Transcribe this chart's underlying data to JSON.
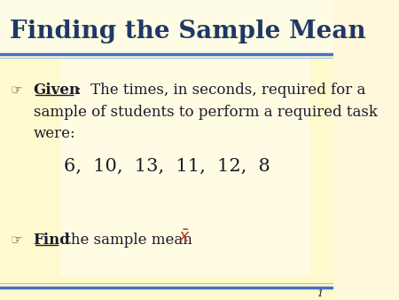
{
  "title": "Finding the Sample Mean",
  "title_color": "#1F3864",
  "title_fontsize": 20,
  "header_line_color": "#4472C4",
  "header_line_color2": "#A8C4E0",
  "given_label": "Given",
  "given_colon_text": ":  The times, in seconds, required for a",
  "given_line2": "sample of students to perform a required task",
  "given_line3": "were:",
  "data_values": "6,  10,  13,  11,  12,  8",
  "find_label": "Find",
  "find_text": " the sample mean ",
  "body_text_color": "#1a1a2e",
  "red_color": "#C0392B",
  "slide_number": "1",
  "bullet_symbol": "☞",
  "body_fontsize": 12,
  "data_fontsize": 15,
  "bg_color": "#FFF8DC"
}
